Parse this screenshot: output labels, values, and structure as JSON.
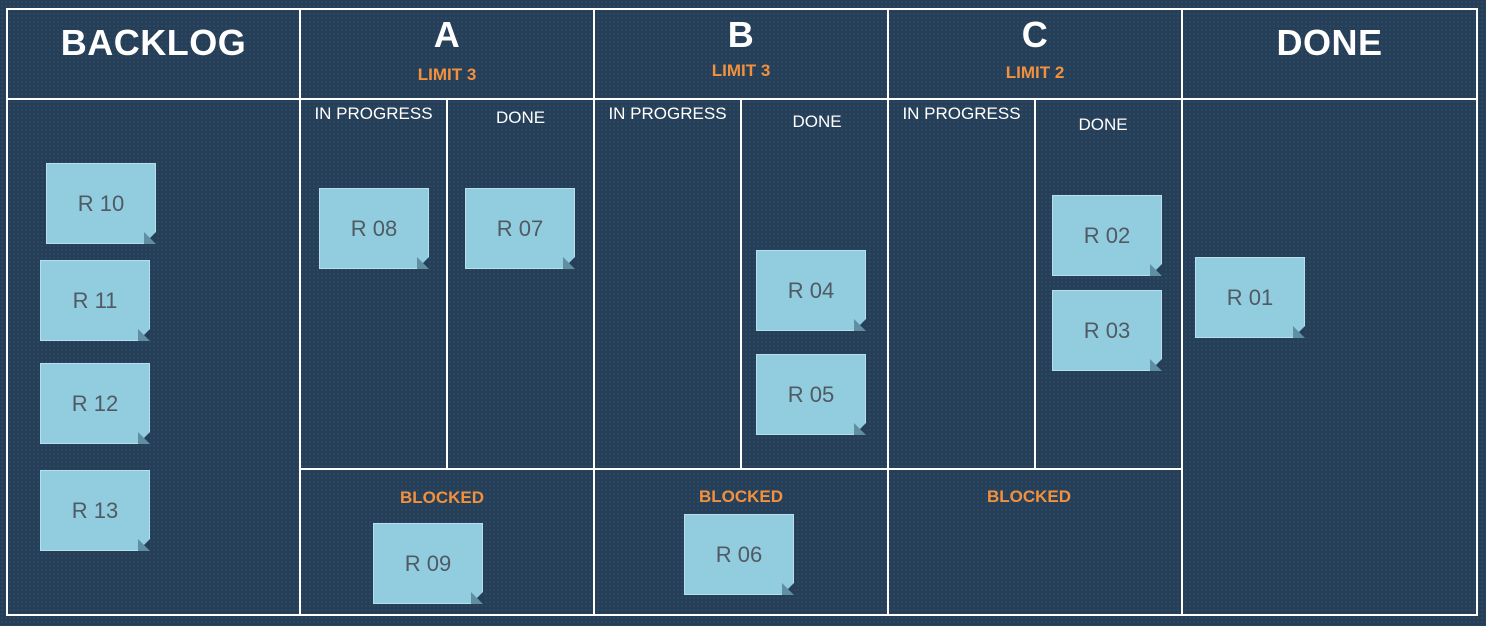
{
  "columns": {
    "backlog": {
      "title": "BACKLOG"
    },
    "a": {
      "title": "A",
      "limit": "LIMIT 3",
      "in_progress": "IN PROGRESS",
      "done": "DONE",
      "blocked": "BLOCKED"
    },
    "b": {
      "title": "B",
      "limit": "LIMIT 3",
      "in_progress": "IN PROGRESS",
      "done": "DONE",
      "blocked": "BLOCKED"
    },
    "c": {
      "title": "C",
      "limit": "LIMIT 2",
      "in_progress": "IN PROGRESS",
      "done": "DONE",
      "blocked": "BLOCKED"
    },
    "done": {
      "title": "DONE"
    }
  },
  "cards": {
    "r10": "R 10",
    "r11": "R 11",
    "r12": "R 12",
    "r13": "R 13",
    "r08": "R 08",
    "r07": "R 07",
    "r09": "R 09",
    "r04": "R 04",
    "r05": "R 05",
    "r06": "R 06",
    "r02": "R 02",
    "r03": "R 03",
    "r01": "R 01"
  },
  "colors": {
    "board_background": "#263f58",
    "card_fill": "#92cddf",
    "accent_orange": "#f2913d",
    "grid_lines": "#ffffff"
  }
}
